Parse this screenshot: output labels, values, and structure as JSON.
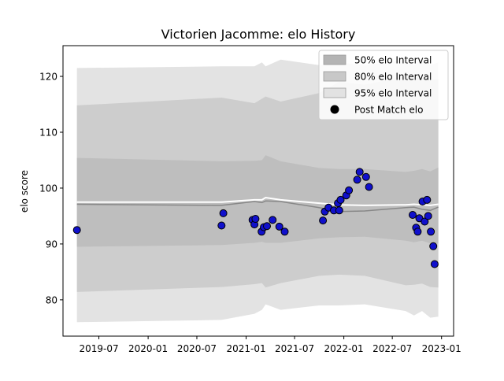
{
  "chart_data": {
    "type": "scatter",
    "title": "Victorien Jacomme: elo History",
    "xlabel": "",
    "ylabel": "elo score",
    "xlim": [
      "2019-02-17",
      "2023-02-15"
    ],
    "ylim": [
      73.5,
      125.5
    ],
    "x_ticks": [
      "2019-07",
      "2020-01",
      "2020-07",
      "2021-01",
      "2021-07",
      "2022-01",
      "2022-07",
      "2023-01"
    ],
    "y_ticks": [
      80,
      90,
      100,
      110,
      120
    ],
    "grid": false,
    "legend_position": "upper-right",
    "legend": [
      {
        "label": "50% elo Interval",
        "color": "#b4b4b4",
        "kind": "band"
      },
      {
        "label": "80% elo Interval",
        "color": "#c8c8c8",
        "kind": "band"
      },
      {
        "label": "95% elo Interval",
        "color": "#e2e2e2",
        "kind": "band"
      },
      {
        "label": "Post Match elo",
        "color": "#000000",
        "kind": "marker"
      }
    ],
    "colors": {
      "band_50": "#bebebe",
      "band_80": "#cdcdcd",
      "band_95": "#e3e3e3",
      "mean_line": "#888888",
      "median_line": "#ffffff",
      "marker_fill": "#1010cc",
      "marker_edge": "#000000"
    },
    "bands": {
      "x": [
        "2019-04-10",
        "2020-10-01",
        "2021-02-01",
        "2021-03-01",
        "2021-03-15",
        "2021-05-10",
        "2021-10-01",
        "2021-12-15",
        "2022-03-20",
        "2022-08-20",
        "2022-09-20",
        "2022-10-20",
        "2022-11-20",
        "2022-12-20"
      ],
      "p50_low": [
        89.5,
        89.8,
        90.2,
        90.4,
        90.2,
        90.2,
        91.0,
        91.2,
        91.3,
        90.6,
        90.3,
        90.6,
        90.1,
        90.1
      ],
      "p50_high": [
        105.4,
        104.8,
        104.9,
        105.0,
        105.9,
        104.8,
        103.6,
        103.4,
        103.4,
        102.9,
        103.1,
        103.4,
        103.0,
        103.7
      ],
      "p80_low": [
        81.4,
        82.3,
        82.8,
        83.0,
        82.2,
        83.0,
        84.3,
        84.5,
        84.3,
        82.6,
        82.7,
        82.9,
        82.3,
        82.2
      ],
      "p80_high": [
        114.8,
        116.2,
        115.2,
        116.0,
        116.4,
        115.5,
        117.0,
        119.0,
        118.5,
        120.0,
        119.8,
        119.8,
        119.5,
        119.5
      ],
      "p95_low": [
        76.0,
        76.4,
        77.5,
        78.2,
        79.2,
        78.2,
        79.0,
        79.0,
        79.2,
        78.0,
        77.2,
        78.0,
        76.8,
        77.0
      ],
      "p95_high": [
        121.5,
        121.8,
        121.8,
        122.5,
        121.8,
        123.0,
        122.0,
        122.5,
        122.0,
        123.0,
        122.0,
        123.0,
        122.0,
        122.5
      ],
      "mean": [
        97.1,
        96.9,
        97.6,
        97.4,
        97.7,
        97.6,
        96.5,
        95.8,
        95.9,
        96.5,
        96.6,
        96.2,
        96.0,
        96.6
      ],
      "median": [
        97.5,
        97.5,
        97.9,
        97.9,
        98.3,
        97.9,
        97.3,
        97.0,
        96.9,
        97.0,
        97.1,
        97.0,
        96.9,
        97.1
      ]
    },
    "points": {
      "x": [
        "2019-04-10",
        "2020-10-01",
        "2020-10-08",
        "2021-01-25",
        "2021-02-01",
        "2021-02-05",
        "2021-02-28",
        "2021-03-08",
        "2021-03-20",
        "2021-04-10",
        "2021-05-05",
        "2021-05-25",
        "2021-10-15",
        "2021-10-22",
        "2021-11-05",
        "2021-11-25",
        "2021-12-10",
        "2021-12-15",
        "2021-12-20",
        "2022-01-10",
        "2022-01-20",
        "2022-02-20",
        "2022-03-01",
        "2022-03-25",
        "2022-04-05",
        "2022-09-15",
        "2022-09-28",
        "2022-10-04",
        "2022-10-10",
        "2022-10-22",
        "2022-10-30",
        "2022-11-08",
        "2022-11-12",
        "2022-11-22",
        "2022-12-01",
        "2022-12-06"
      ],
      "y": [
        92.5,
        93.3,
        95.5,
        94.3,
        93.5,
        94.5,
        92.2,
        93.0,
        93.2,
        94.3,
        93.1,
        92.2,
        94.2,
        95.8,
        96.5,
        96.0,
        97.3,
        96.0,
        97.9,
        98.7,
        99.6,
        101.5,
        102.9,
        102.0,
        100.2,
        95.2,
        92.9,
        92.2,
        94.6,
        97.6,
        94.0,
        97.9,
        95.0,
        92.2,
        89.6,
        86.4
      ]
    }
  }
}
